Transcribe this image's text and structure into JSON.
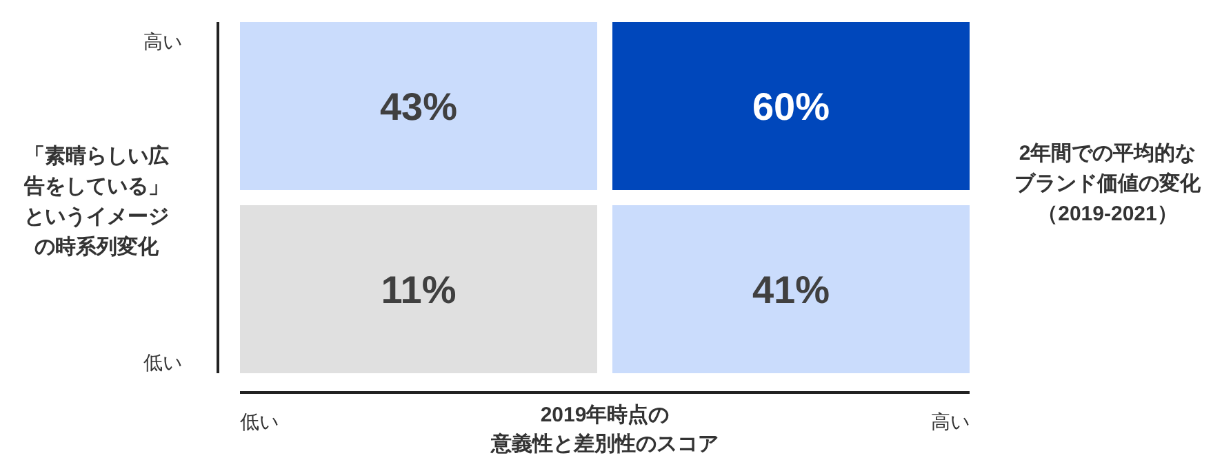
{
  "chart_data": {
    "type": "heatmap",
    "categories": [
      "低い",
      "高い"
    ],
    "y_categories": [
      "高い",
      "低い"
    ],
    "cells": [
      [
        43,
        60
      ],
      [
        11,
        41
      ]
    ],
    "cell_labels": [
      [
        "43%",
        "60%"
      ],
      [
        "11%",
        "41%"
      ]
    ],
    "colors": [
      "#e0e0e0",
      "#cadcfc",
      "#0047bb"
    ],
    "xlabel": "2019年時点の意義性と差別性のスコア",
    "ylabel": "「素晴らしい広告をしている」というイメージの時系列変化",
    "annotations": [
      "2年間での平均的なブランド価値の変化（2019-2021）"
    ]
  }
}
